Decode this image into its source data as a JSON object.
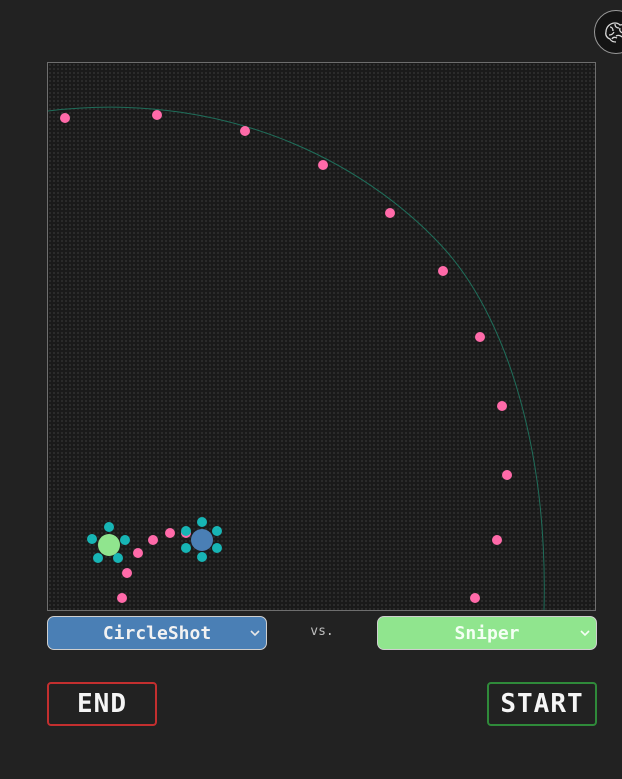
{
  "controls": {
    "left_select": {
      "selected": "CircleShot",
      "color": "#4a7fb5"
    },
    "vs_label": "vs.",
    "right_select": {
      "selected": "Sniper",
      "color": "#90e58e"
    },
    "end_label": "END",
    "start_label": "START",
    "end_color": "#c32f2f",
    "start_color": "#2f8a3a"
  },
  "header": {
    "icon": "brain-icon"
  },
  "arena": {
    "background": "#1a1a1a",
    "bullet_color": "#ff6aa9",
    "player_left": {
      "bot": "CircleShot",
      "body_color": "#90e58e",
      "orbit_color": "#17b5b5"
    },
    "player_right": {
      "bot": "Sniper",
      "body_color": "#4a7fb5",
      "orbit_color": "#17b5b5"
    },
    "trail_color": "#1f6e5a"
  }
}
